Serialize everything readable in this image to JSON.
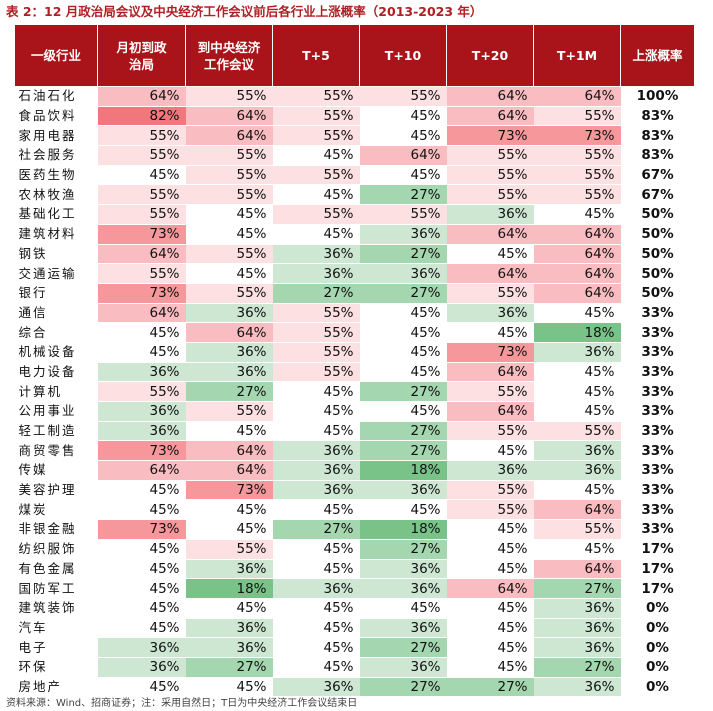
{
  "title": "表 2：12 月政治局会议及中央经济工作会议前后各行业上涨概率（2013-2023 年）",
  "headers": [
    "一级行业",
    "月初到政治局",
    "到中央经济工作会议",
    "T+5",
    "T+10",
    "T+20",
    "T+1M",
    "上涨概率"
  ],
  "rows": [
    {
      "name": "石油石化",
      "values": [
        "64%",
        "55%",
        "55%",
        "55%",
        "64%",
        "64%"
      ],
      "prob": "100%"
    },
    {
      "name": "食品饮料",
      "values": [
        "82%",
        "64%",
        "55%",
        "45%",
        "64%",
        "55%"
      ],
      "prob": "83%"
    },
    {
      "name": "家用电器",
      "values": [
        "55%",
        "64%",
        "55%",
        "45%",
        "73%",
        "73%"
      ],
      "prob": "83%"
    },
    {
      "name": "社会服务",
      "values": [
        "55%",
        "55%",
        "45%",
        "64%",
        "55%",
        "55%"
      ],
      "prob": "83%"
    },
    {
      "name": "医药生物",
      "values": [
        "45%",
        "55%",
        "55%",
        "45%",
        "55%",
        "55%"
      ],
      "prob": "67%"
    },
    {
      "name": "农林牧渔",
      "values": [
        "55%",
        "55%",
        "45%",
        "27%",
        "55%",
        "55%"
      ],
      "prob": "67%"
    },
    {
      "name": "基础化工",
      "values": [
        "55%",
        "45%",
        "55%",
        "55%",
        "36%",
        "45%"
      ],
      "prob": "50%"
    },
    {
      "name": "建筑材料",
      "values": [
        "73%",
        "45%",
        "45%",
        "36%",
        "64%",
        "64%"
      ],
      "prob": "50%"
    },
    {
      "name": "钢铁",
      "values": [
        "64%",
        "55%",
        "36%",
        "27%",
        "45%",
        "64%"
      ],
      "prob": "50%"
    },
    {
      "name": "交通运输",
      "values": [
        "55%",
        "45%",
        "36%",
        "36%",
        "64%",
        "64%"
      ],
      "prob": "50%"
    },
    {
      "name": "银行",
      "values": [
        "73%",
        "55%",
        "27%",
        "27%",
        "55%",
        "64%"
      ],
      "prob": "50%"
    },
    {
      "name": "通信",
      "values": [
        "64%",
        "36%",
        "55%",
        "45%",
        "36%",
        "45%"
      ],
      "prob": "33%"
    },
    {
      "name": "综合",
      "values": [
        "45%",
        "64%",
        "55%",
        "45%",
        "45%",
        "18%"
      ],
      "prob": "33%"
    },
    {
      "name": "机械设备",
      "values": [
        "45%",
        "36%",
        "55%",
        "45%",
        "73%",
        "36%"
      ],
      "prob": "33%"
    },
    {
      "name": "电力设备",
      "values": [
        "36%",
        "36%",
        "55%",
        "45%",
        "64%",
        "45%"
      ],
      "prob": "33%"
    },
    {
      "name": "计算机",
      "values": [
        "55%",
        "27%",
        "45%",
        "27%",
        "55%",
        "45%"
      ],
      "prob": "33%"
    },
    {
      "name": "公用事业",
      "values": [
        "36%",
        "55%",
        "45%",
        "45%",
        "64%",
        "45%"
      ],
      "prob": "33%"
    },
    {
      "name": "轻工制造",
      "values": [
        "36%",
        "45%",
        "45%",
        "27%",
        "55%",
        "55%"
      ],
      "prob": "33%"
    },
    {
      "name": "商贸零售",
      "values": [
        "73%",
        "64%",
        "36%",
        "27%",
        "45%",
        "36%"
      ],
      "prob": "33%"
    },
    {
      "name": "传媒",
      "values": [
        "64%",
        "64%",
        "36%",
        "18%",
        "36%",
        "36%"
      ],
      "prob": "33%"
    },
    {
      "name": "美容护理",
      "values": [
        "45%",
        "73%",
        "36%",
        "36%",
        "55%",
        "45%"
      ],
      "prob": "33%"
    },
    {
      "name": "煤炭",
      "values": [
        "45%",
        "45%",
        "45%",
        "45%",
        "55%",
        "64%"
      ],
      "prob": "33%"
    },
    {
      "name": "非银金融",
      "values": [
        "73%",
        "45%",
        "27%",
        "18%",
        "45%",
        "55%"
      ],
      "prob": "33%"
    },
    {
      "name": "纺织服饰",
      "values": [
        "45%",
        "55%",
        "45%",
        "27%",
        "45%",
        "45%"
      ],
      "prob": "17%"
    },
    {
      "name": "有色金属",
      "values": [
        "45%",
        "36%",
        "45%",
        "36%",
        "45%",
        "64%"
      ],
      "prob": "17%"
    },
    {
      "name": "国防军工",
      "values": [
        "45%",
        "18%",
        "36%",
        "36%",
        "64%",
        "27%"
      ],
      "prob": "17%"
    },
    {
      "name": "建筑装饰",
      "values": [
        "45%",
        "45%",
        "45%",
        "45%",
        "45%",
        "36%"
      ],
      "prob": "0%"
    },
    {
      "name": "汽车",
      "values": [
        "45%",
        "36%",
        "45%",
        "36%",
        "45%",
        "36%"
      ],
      "prob": "0%"
    },
    {
      "name": "电子",
      "values": [
        "36%",
        "36%",
        "45%",
        "27%",
        "45%",
        "36%"
      ],
      "prob": "0%"
    },
    {
      "name": "环保",
      "values": [
        "36%",
        "27%",
        "45%",
        "36%",
        "45%",
        "27%"
      ],
      "prob": "0%"
    },
    {
      "name": "房地产",
      "values": [
        "45%",
        "45%",
        "36%",
        "27%",
        "27%",
        "36%"
      ],
      "prob": "0%"
    }
  ],
  "colors": {
    "header_bg": "#a8141a",
    "title": "#b01f24",
    "82": "#f2777d",
    "73": "#f6989b",
    "64": "#f9bcc0",
    "55": "#fce0e2",
    "45": "#ffffff",
    "36": "#cde7d3",
    "27": "#a4d6af",
    "18": "#79c388"
  },
  "source": "资料来源：Wind、招商证券；注：采用自然日；T日为中央经济工作会议结束日"
}
